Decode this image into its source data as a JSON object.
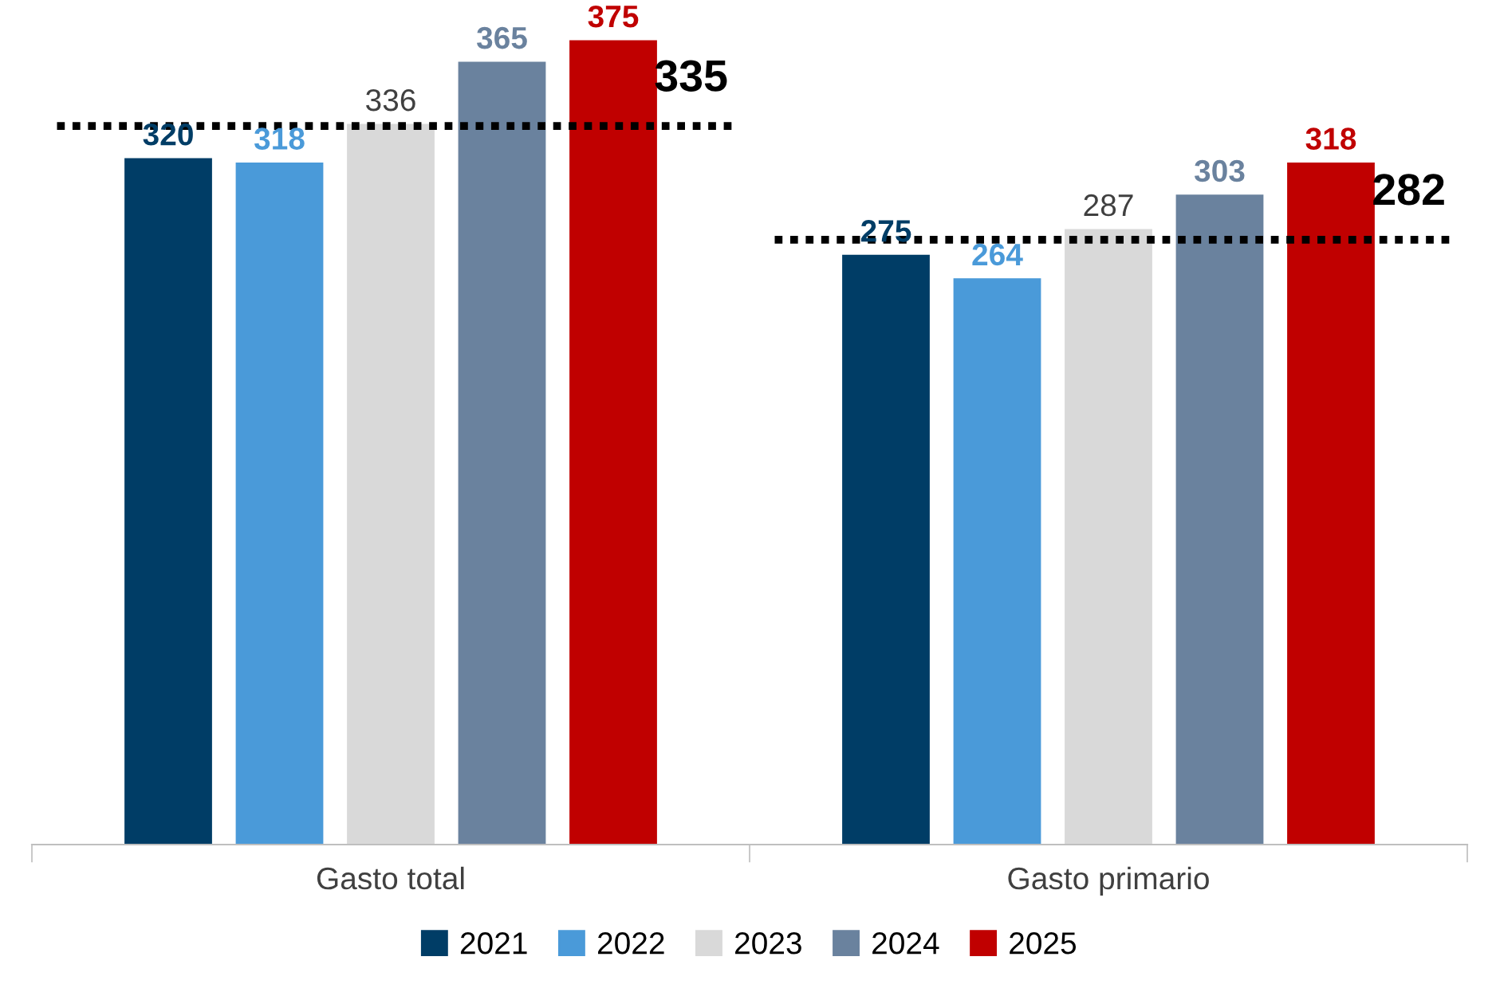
{
  "chart_data": {
    "type": "bar",
    "categories": [
      "Gasto total",
      "Gasto primario"
    ],
    "series": [
      {
        "name": "2021",
        "color": "#003d66",
        "values": [
          320,
          275
        ]
      },
      {
        "name": "2022",
        "color": "#4a9ad9",
        "values": [
          318,
          264
        ]
      },
      {
        "name": "2023",
        "color": "#d9d9d9",
        "values": [
          336,
          287
        ]
      },
      {
        "name": "2024",
        "color": "#6a829e",
        "values": [
          365,
          303
        ]
      },
      {
        "name": "2025",
        "color": "#c00000",
        "values": [
          375,
          318
        ]
      }
    ],
    "tick_labels": "x",
    "data_labels": true,
    "legend": "bottom",
    "grid": false,
    "ref_lines": [
      {
        "axis": "y",
        "value": 335,
        "label": "335",
        "color": "#000000",
        "line_style": "dotted"
      },
      {
        "axis": "y",
        "value": 282,
        "label": "282",
        "color": "#000000",
        "line_style": "dotted"
      }
    ]
  }
}
